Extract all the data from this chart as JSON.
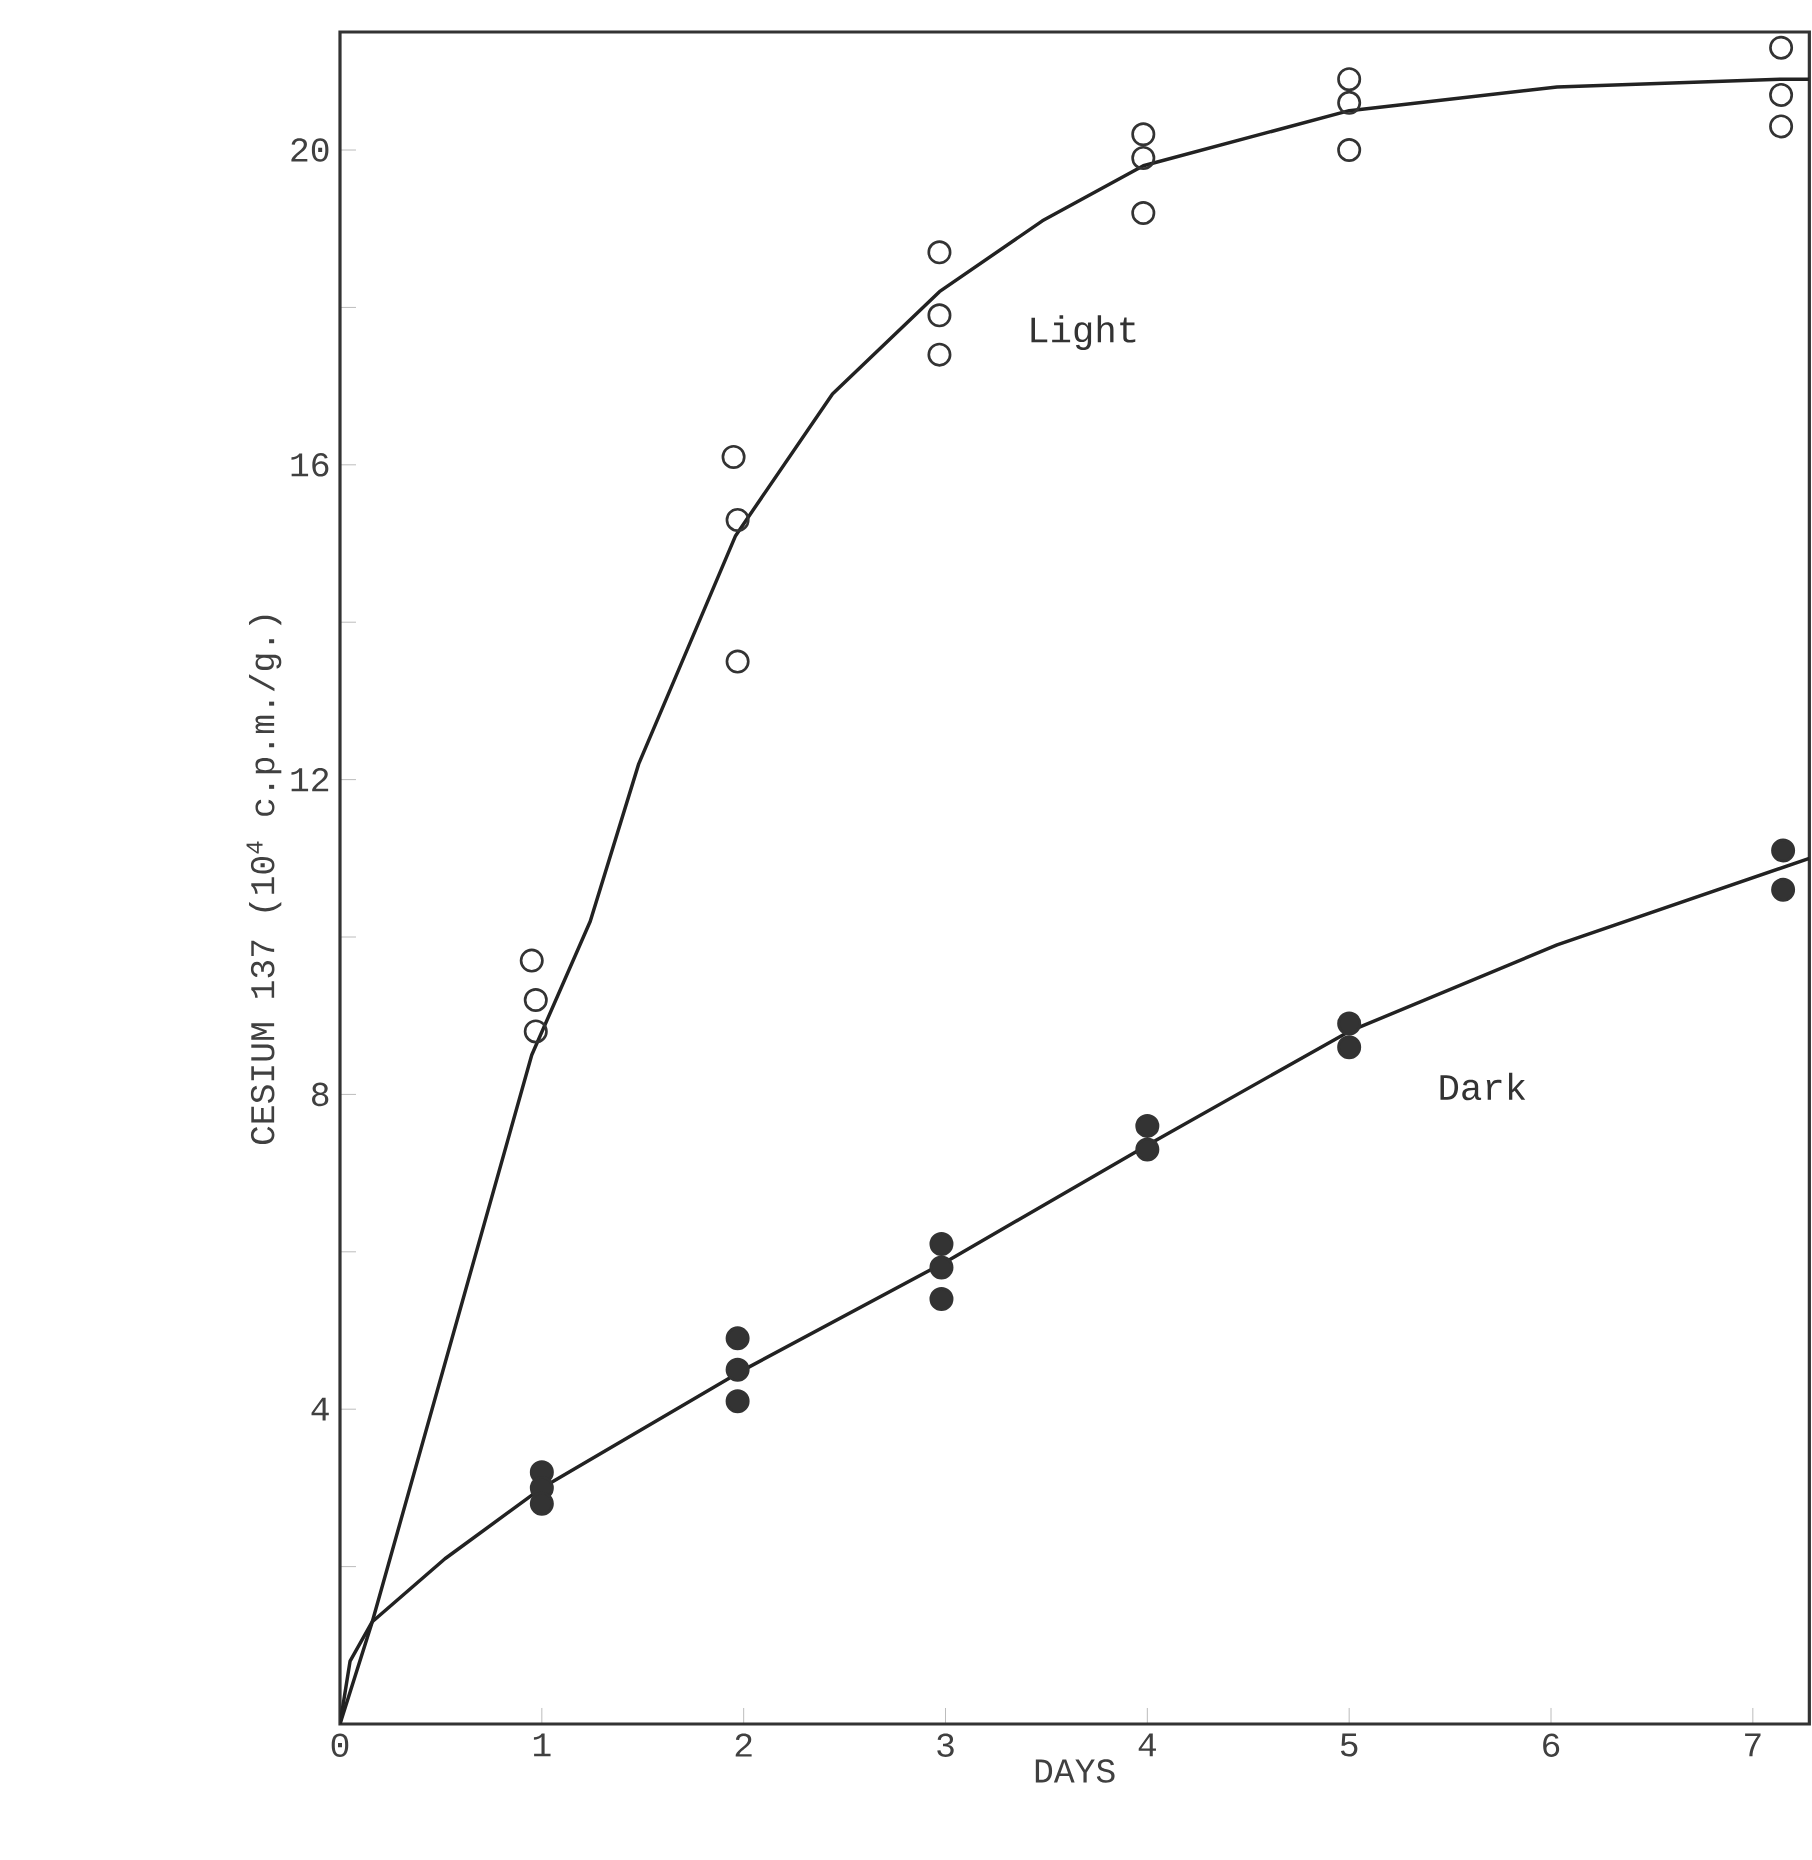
{
  "chart_data": {
    "type": "scatter",
    "xlabel": "DAYS",
    "ylabel": "CESIUM 137 (10$^{4}$ c.p.m./g.)",
    "xlim": [
      0,
      7.28
    ],
    "ylim": [
      0,
      21.5
    ],
    "xticks": [
      0,
      1,
      2,
      3,
      4,
      5,
      6,
      7
    ],
    "yticks": [
      {
        "value": 2,
        "label": null
      },
      4,
      {
        "value": 6,
        "label": null
      },
      8,
      {
        "value": 10,
        "label": null
      },
      12,
      {
        "value": 14,
        "label": null
      },
      16,
      {
        "value": 18,
        "label": null
      },
      20
    ],
    "grid": false,
    "legend": false,
    "series": [
      {
        "marker": "open circle",
        "color": "#333333",
        "x": [
          0.95,
          0.97,
          0.97,
          1.95,
          1.97,
          1.97,
          2.97,
          2.97,
          2.97,
          3.98,
          3.98,
          3.98,
          5.0,
          5.0,
          5.0,
          7.14,
          7.14,
          7.14
        ],
        "values": [
          9.7,
          9.2,
          8.8,
          16.1,
          15.3,
          13.5,
          18.7,
          17.9,
          17.4,
          20.2,
          19.9,
          19.2,
          20.9,
          20.6,
          20.0,
          21.3,
          20.7,
          20.3
        ]
      },
      {
        "marker": "circle",
        "color": "#333333",
        "x": [
          1.0,
          1.0,
          1.0,
          1.97,
          1.97,
          1.97,
          2.98,
          2.98,
          2.98,
          4.0,
          4.0,
          5.0,
          5.0,
          7.15,
          7.15
        ],
        "values": [
          3.2,
          3.0,
          2.8,
          4.9,
          4.5,
          4.1,
          6.1,
          5.8,
          5.4,
          7.6,
          7.3,
          8.9,
          8.6,
          11.1,
          10.6
        ]
      },
      {
        "type": "line",
        "name": "Light",
        "marker": "none",
        "color": "#222222",
        "x": [
          0,
          0.16,
          0.5,
          0.95,
          1.24,
          1.48,
          1.96,
          2.44,
          2.97,
          3.48,
          3.98,
          5.0,
          6.03,
          7.14,
          7.28
        ],
        "values": [
          0,
          1.3,
          4.4,
          8.5,
          10.2,
          12.2,
          15.1,
          16.9,
          18.2,
          19.1,
          19.8,
          20.5,
          20.8,
          20.9,
          20.9
        ]
      },
      {
        "type": "line",
        "name": "Dark",
        "marker": "none",
        "color": "#222222",
        "x": [
          0,
          0.05,
          0.16,
          0.52,
          1.0,
          2.0,
          3.02,
          4.03,
          5.0,
          6.03,
          7.28
        ],
        "values": [
          0,
          0.8,
          1.3,
          2.1,
          3.0,
          4.5,
          5.9,
          7.4,
          8.8,
          9.9,
          11.0
        ]
      }
    ]
  }
}
